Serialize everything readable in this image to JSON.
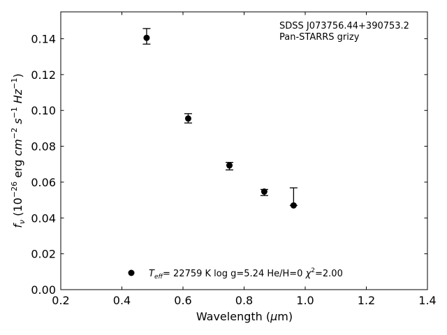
{
  "chart_data": {
    "type": "scatter",
    "title": "",
    "xlabel_prefix": "Wavelength (",
    "xlabel_mu": "μ",
    "xlabel_suffix": "m)",
    "ylabel": {
      "f": "f",
      "nu": "ν",
      "open": " (10",
      "exp1": "−26",
      "erg": " erg ",
      "cm": "cm",
      "exp2": "−2",
      "s": " s",
      "exp3": "−1",
      "hz": " Hz",
      "exp4": "−1",
      "close": ")"
    },
    "xlim": [
      0.2,
      1.4
    ],
    "ylim": [
      0.0,
      0.155
    ],
    "xticks": [
      0.2,
      0.4,
      0.6,
      0.8,
      1.0,
      1.2,
      1.4
    ],
    "xtick_labels": [
      "0.2",
      "0.4",
      "0.6",
      "0.8",
      "1.0",
      "1.2",
      "1.4"
    ],
    "yticks": [
      0.0,
      0.02,
      0.04,
      0.06,
      0.08,
      0.1,
      0.12,
      0.14
    ],
    "ytick_labels": [
      "0.00",
      "0.02",
      "0.04",
      "0.06",
      "0.08",
      "0.10",
      "0.12",
      "0.14"
    ],
    "annotation": {
      "line1": "SDSS J073756.44+390753.2",
      "line2": "Pan-STARRS grizy"
    },
    "legend": {
      "placement": "bottom-center",
      "teff_T": "T",
      "teff_sub": "eff",
      "teff_rest": "= 22759 K  log g=5.24  He/H=0  ",
      "chi": "χ",
      "chi_sup": "2",
      "chi_rest": "=2.00"
    },
    "series": [
      {
        "x": [
          0.481,
          0.617,
          0.752,
          0.866,
          0.962
        ],
        "y": [
          0.1405,
          0.0955,
          0.0693,
          0.0547,
          0.047
        ],
        "yerr_low": [
          0.0035,
          0.0025,
          0.0025,
          0.0022,
          0.0
        ],
        "yerr_high": [
          0.0052,
          0.0027,
          0.0017,
          0.0012,
          0.0098
        ],
        "marker": "circle",
        "color": "#000000"
      }
    ]
  }
}
